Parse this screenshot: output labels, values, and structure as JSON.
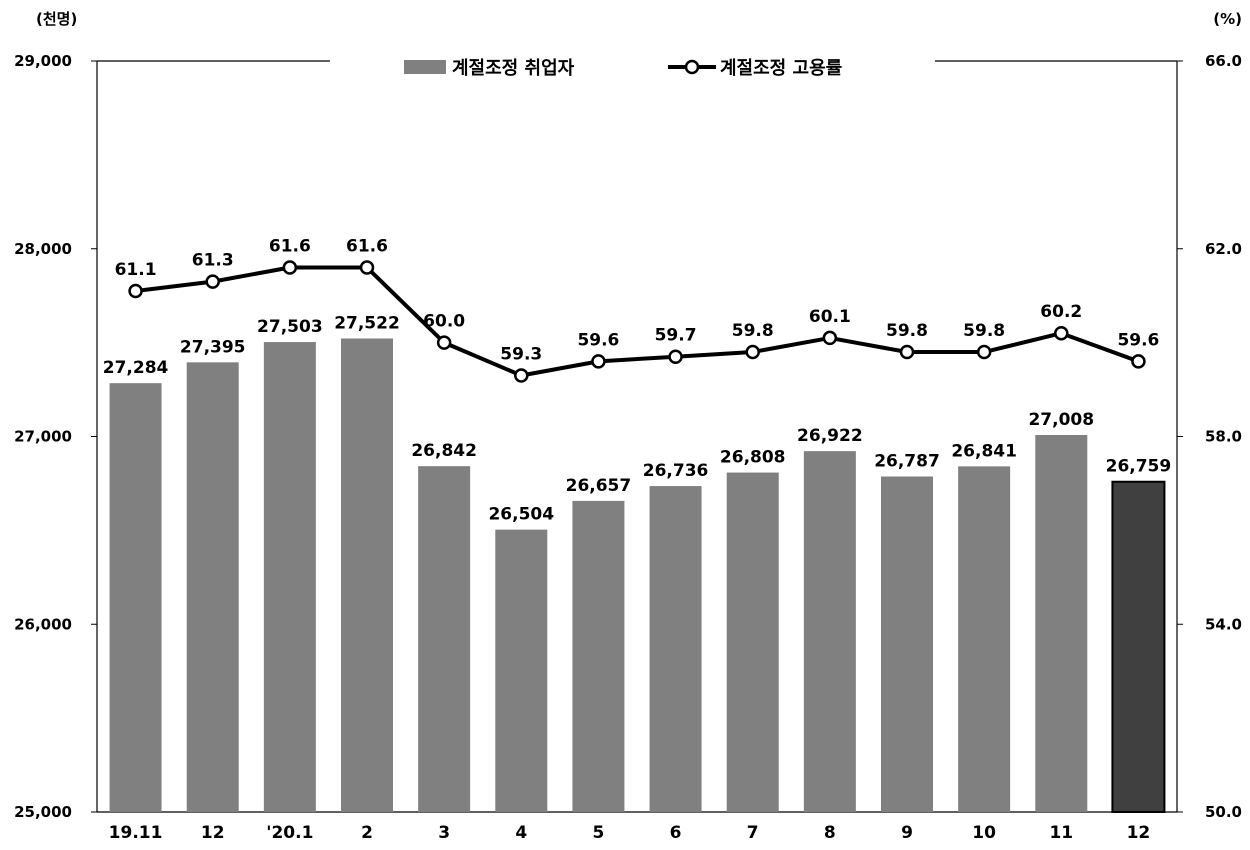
{
  "chart_data": {
    "type": "bar",
    "unit_left": "(천명)",
    "unit_right": "(%)",
    "categories": [
      "19.11",
      "12",
      "'20.1",
      "2",
      "3",
      "4",
      "5",
      "6",
      "7",
      "8",
      "9",
      "10",
      "11",
      "12"
    ],
    "bar_labels": [
      "27,284",
      "27,395",
      "27,503",
      "27,522",
      "26,842",
      "26,504",
      "26,657",
      "26,736",
      "26,808",
      "26,922",
      "26,787",
      "26,841",
      "27,008",
      "26,759"
    ],
    "line_labels": [
      "61.1",
      "61.3",
      "61.6",
      "61.6",
      "60.0",
      "59.3",
      "59.6",
      "59.7",
      "59.8",
      "60.1",
      "59.8",
      "59.8",
      "60.2",
      "59.6"
    ],
    "series": [
      {
        "name": "계절조정 취업자",
        "type": "bar",
        "axis": "left",
        "color": "#808080",
        "highlight_color": "#404040",
        "highlight_index": 13,
        "values": [
          27284,
          27395,
          27503,
          27522,
          26842,
          26504,
          26657,
          26736,
          26808,
          26922,
          26787,
          26841,
          27008,
          26759
        ]
      },
      {
        "name": "계절조정 고용률",
        "type": "line",
        "axis": "right",
        "color": "#000000",
        "values": [
          61.1,
          61.3,
          61.6,
          61.6,
          60.0,
          59.3,
          59.6,
          59.7,
          59.8,
          60.1,
          59.8,
          59.8,
          60.2,
          59.6
        ]
      }
    ],
    "ylim_left": [
      25000,
      29000
    ],
    "yticks_left": [
      "25,000",
      "26,000",
      "27,000",
      "28,000",
      "29,000"
    ],
    "ylim_right": [
      50.0,
      66.0
    ],
    "yticks_right": [
      "50.0",
      "54.0",
      "58.0",
      "62.0",
      "66.0"
    ],
    "grid": false,
    "legend_position": "top-center"
  }
}
